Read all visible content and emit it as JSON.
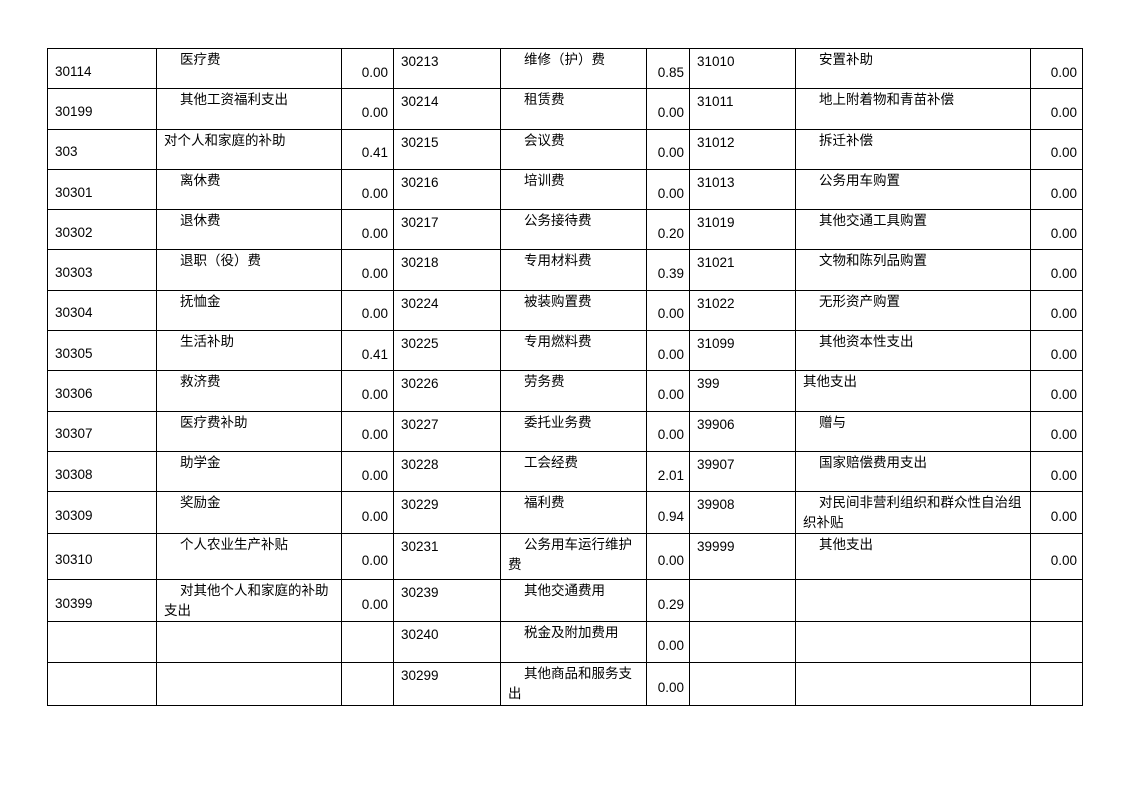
{
  "rows": [
    [
      {
        "code": "30114",
        "name": "医疗费",
        "indent": true,
        "value": "0.00"
      },
      {
        "code": "30213",
        "name": "维修（护）费",
        "indent": true,
        "value": "0.85"
      },
      {
        "code": "31010",
        "name": "安置补助",
        "indent": true,
        "value": "0.00"
      }
    ],
    [
      {
        "code": "30199",
        "name": "其他工资福利支出",
        "indent": true,
        "value": "0.00"
      },
      {
        "code": "30214",
        "name": "租赁费",
        "indent": true,
        "value": "0.00"
      },
      {
        "code": "31011",
        "name": "地上附着物和青苗补偿",
        "indent": true,
        "value": "0.00"
      }
    ],
    [
      {
        "code": "303",
        "name": "对个人和家庭的补助",
        "indent": false,
        "value": "0.41"
      },
      {
        "code": "30215",
        "name": "会议费",
        "indent": true,
        "value": "0.00"
      },
      {
        "code": "31012",
        "name": "拆迁补偿",
        "indent": true,
        "value": "0.00"
      }
    ],
    [
      {
        "code": "30301",
        "name": "离休费",
        "indent": true,
        "value": "0.00"
      },
      {
        "code": "30216",
        "name": "培训费",
        "indent": true,
        "value": "0.00"
      },
      {
        "code": "31013",
        "name": "公务用车购置",
        "indent": true,
        "value": "0.00"
      }
    ],
    [
      {
        "code": "30302",
        "name": "退休费",
        "indent": true,
        "value": "0.00"
      },
      {
        "code": "30217",
        "name": "公务接待费",
        "indent": true,
        "value": "0.20"
      },
      {
        "code": "31019",
        "name": "其他交通工具购置",
        "indent": true,
        "value": "0.00"
      }
    ],
    [
      {
        "code": "30303",
        "name": "退职（役）费",
        "indent": true,
        "value": "0.00"
      },
      {
        "code": "30218",
        "name": "专用材料费",
        "indent": true,
        "value": "0.39"
      },
      {
        "code": "31021",
        "name": "文物和陈列品购置",
        "indent": true,
        "value": "0.00"
      }
    ],
    [
      {
        "code": "30304",
        "name": "抚恤金",
        "indent": true,
        "value": "0.00"
      },
      {
        "code": "30224",
        "name": "被装购置费",
        "indent": true,
        "value": "0.00"
      },
      {
        "code": "31022",
        "name": "无形资产购置",
        "indent": true,
        "value": "0.00"
      }
    ],
    [
      {
        "code": "30305",
        "name": "生活补助",
        "indent": true,
        "value": "0.41"
      },
      {
        "code": "30225",
        "name": "专用燃料费",
        "indent": true,
        "value": "0.00"
      },
      {
        "code": "31099",
        "name": "其他资本性支出",
        "indent": true,
        "value": "0.00"
      }
    ],
    [
      {
        "code": "30306",
        "name": "救济费",
        "indent": true,
        "value": "0.00"
      },
      {
        "code": "30226",
        "name": "劳务费",
        "indent": true,
        "value": "0.00"
      },
      {
        "code": "399",
        "name": "其他支出",
        "indent": false,
        "value": "0.00"
      }
    ],
    [
      {
        "code": "30307",
        "name": "医疗费补助",
        "indent": true,
        "value": "0.00"
      },
      {
        "code": "30227",
        "name": "委托业务费",
        "indent": true,
        "value": "0.00"
      },
      {
        "code": "39906",
        "name": "赠与",
        "indent": true,
        "value": "0.00"
      }
    ],
    [
      {
        "code": "30308",
        "name": "助学金",
        "indent": true,
        "value": "0.00"
      },
      {
        "code": "30228",
        "name": "工会经费",
        "indent": true,
        "value": "2.01"
      },
      {
        "code": "39907",
        "name": "国家赔偿费用支出",
        "indent": true,
        "value": "0.00"
      }
    ],
    [
      {
        "code": "30309",
        "name": "奖励金",
        "indent": true,
        "value": "0.00"
      },
      {
        "code": "30229",
        "name": "福利费",
        "indent": true,
        "value": "0.94"
      },
      {
        "code": "39908",
        "name": "对民间非营利组织和群众性自治组织补贴",
        "indent": true,
        "value": "0.00"
      }
    ],
    [
      {
        "code": "30310",
        "name": "个人农业生产补贴",
        "indent": true,
        "value": "0.00"
      },
      {
        "code": "30231",
        "name": "公务用车运行维护费",
        "indent": true,
        "value": "0.00"
      },
      {
        "code": "39999",
        "name": "其他支出",
        "indent": true,
        "value": "0.00"
      }
    ],
    [
      {
        "code": "30399",
        "name": "对其他个人和家庭的补助支出",
        "indent": true,
        "value": "0.00"
      },
      {
        "code": "30239",
        "name": "其他交通费用",
        "indent": true,
        "value": "0.29"
      },
      {
        "code": "",
        "name": "",
        "indent": false,
        "value": ""
      }
    ],
    [
      {
        "code": "",
        "name": "",
        "indent": false,
        "value": ""
      },
      {
        "code": "30240",
        "name": "税金及附加费用",
        "indent": true,
        "value": "0.00"
      },
      {
        "code": "",
        "name": "",
        "indent": false,
        "value": ""
      }
    ],
    [
      {
        "code": "",
        "name": "",
        "indent": false,
        "value": ""
      },
      {
        "code": "30299",
        "name": "其他商品和服务支出",
        "indent": true,
        "value": "0.00"
      },
      {
        "code": "",
        "name": "",
        "indent": false,
        "value": ""
      }
    ]
  ]
}
